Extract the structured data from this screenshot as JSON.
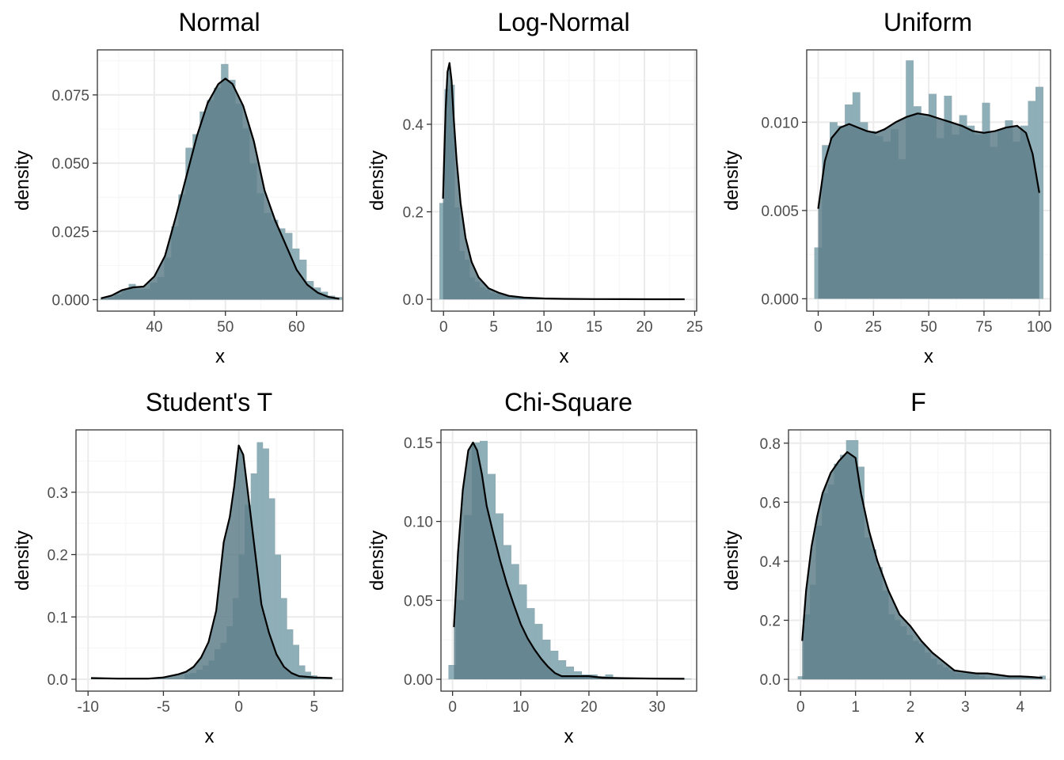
{
  "chart_data": [
    {
      "type": "bar",
      "title": "Normal",
      "xlabel": "x",
      "ylabel": "density",
      "xlim": [
        32,
        66.5
      ],
      "ylim": [
        -0.0042,
        0.0915
      ],
      "xticks": [
        40,
        50,
        60
      ],
      "xtick_labels": [
        "40",
        "50",
        "60"
      ],
      "yticks": [
        0,
        0.025,
        0.05,
        0.075
      ],
      "ytick_labels": [
        "0.000",
        "0.025",
        "0.050",
        "0.075"
      ],
      "grid": true,
      "bins": {
        "start": 32.4,
        "width": 1.0,
        "values": [
          0.0003,
          0.0008,
          0.0018,
          0.0034,
          0.0057,
          0.0038,
          0.0039,
          0.0062,
          0.0082,
          0.0154,
          0.0268,
          0.0385,
          0.0556,
          0.0606,
          0.0689,
          0.0731,
          0.0776,
          0.0863,
          0.0805,
          0.0717,
          0.0627,
          0.0498,
          0.0389,
          0.0317,
          0.0292,
          0.0261,
          0.0244,
          0.0187,
          0.0146,
          0.0068,
          0.0044,
          0.0029,
          0.0014,
          0.0009
        ]
      },
      "density": {
        "x": [
          32.5,
          34,
          35.5,
          37,
          38.5,
          40,
          41.5,
          43,
          44.5,
          46,
          47.5,
          49,
          50,
          51,
          52.5,
          54,
          55.5,
          57,
          58.5,
          60,
          61.5,
          63,
          64.5,
          66
        ],
        "y": [
          0.0005,
          0.0015,
          0.0035,
          0.0045,
          0.0048,
          0.0085,
          0.016,
          0.03,
          0.045,
          0.06,
          0.072,
          0.079,
          0.081,
          0.079,
          0.071,
          0.058,
          0.04,
          0.029,
          0.02,
          0.011,
          0.0055,
          0.0025,
          0.001,
          0.0003
        ]
      }
    },
    {
      "type": "bar",
      "title": "Log-Normal",
      "xlabel": "x",
      "ylabel": "density",
      "xlim": [
        -1.2,
        25.2
      ],
      "ylim": [
        -0.027,
        0.57
      ],
      "xticks": [
        0,
        5,
        10,
        15,
        20,
        25
      ],
      "xtick_labels": [
        "0",
        "5",
        "10",
        "15",
        "20",
        "25"
      ],
      "yticks": [
        0,
        0.2,
        0.4
      ],
      "ytick_labels": [
        "0.0",
        "0.2",
        "0.4"
      ],
      "grid": true,
      "bins": {
        "start": -0.4,
        "width": 0.5,
        "values": [
          0.22,
          0.48,
          0.49,
          0.21,
          0.11,
          0.09,
          0.05,
          0.04,
          0.027,
          0.022,
          0.015,
          0.012,
          0.01,
          0.007,
          0.006,
          0.005,
          0.004,
          0.004,
          0.003,
          0.003,
          0.002,
          0.002,
          0.002,
          0.001,
          0.001,
          0.001,
          0.001,
          0.0008,
          0.0006,
          0.0005,
          0.0004,
          0.0004,
          0.0003,
          0.0003,
          0.0002,
          0.0002,
          0.0002,
          0.0002,
          0.0001,
          0.0001,
          0.0001,
          0.0001,
          0.0001,
          0.0001,
          0.0001,
          0.0001,
          0.0001,
          0.0001,
          0.0001,
          0.0001
        ]
      },
      "density": {
        "x": [
          -0.05,
          0.2,
          0.4,
          0.6,
          0.8,
          1.0,
          1.3,
          1.7,
          2.2,
          2.8,
          3.5,
          4.5,
          5.5,
          6.5,
          8,
          10,
          12,
          15,
          18,
          21,
          24
        ],
        "y": [
          0.23,
          0.43,
          0.52,
          0.54,
          0.5,
          0.42,
          0.32,
          0.22,
          0.14,
          0.085,
          0.05,
          0.025,
          0.015,
          0.008,
          0.004,
          0.002,
          0.001,
          0.0005,
          0.0003,
          0.0002,
          0.0001
        ]
      }
    },
    {
      "type": "bar",
      "title": "Uniform",
      "xlabel": "x",
      "ylabel": "density",
      "xlim": [
        -5.2,
        105.1
      ],
      "ylim": [
        -0.0007,
        0.0141
      ],
      "xticks": [
        0,
        25,
        50,
        75,
        100
      ],
      "xtick_labels": [
        "0",
        "25",
        "50",
        "75",
        "100"
      ],
      "yticks": [
        0,
        0.005,
        0.01
      ],
      "ytick_labels": [
        "0.000",
        "0.005",
        "0.010"
      ],
      "grid": true,
      "bins": {
        "start": -1.7,
        "width": 3.45,
        "values": [
          0.0029,
          0.0087,
          0.01,
          0.0098,
          0.011,
          0.0117,
          0.01,
          0.0095,
          0.0092,
          0.0089,
          0.0096,
          0.0079,
          0.0135,
          0.0109,
          0.0103,
          0.0116,
          0.0091,
          0.0115,
          0.0093,
          0.0104,
          0.0098,
          0.0093,
          0.0111,
          0.0086,
          0.0096,
          0.0101,
          0.0089,
          0.0098,
          0.0112,
          0.012
        ]
      },
      "density": {
        "x": [
          0,
          3,
          6,
          10,
          14,
          18,
          22,
          26,
          30,
          35,
          40,
          45,
          50,
          55,
          60,
          65,
          70,
          75,
          80,
          85,
          90,
          94,
          97,
          100
        ],
        "y": [
          0.0051,
          0.0078,
          0.0091,
          0.0097,
          0.0099,
          0.0097,
          0.0095,
          0.0094,
          0.0096,
          0.01,
          0.0103,
          0.0105,
          0.0104,
          0.0102,
          0.01,
          0.0098,
          0.0095,
          0.0094,
          0.0095,
          0.0097,
          0.0098,
          0.0094,
          0.0082,
          0.006
        ]
      }
    },
    {
      "type": "bar",
      "title": "Student's T",
      "xlabel": "x",
      "ylabel": "density",
      "xlim": [
        -10.8,
        6.9
      ],
      "ylim": [
        -0.019,
        0.4
      ],
      "xticks": [
        -10,
        -5,
        0,
        5
      ],
      "xtick_labels": [
        "-10",
        "-5",
        "0",
        "5"
      ],
      "yticks": [
        0,
        0.1,
        0.2,
        0.3
      ],
      "ytick_labels": [
        "0.0",
        "0.1",
        "0.2",
        "0.3"
      ],
      "grid": true,
      "bins": {
        "start": -3.6,
        "width": 0.4,
        "values": [
          0.008,
          0.01,
          0.015,
          0.022,
          0.03,
          0.048,
          0.058,
          0.085,
          0.13,
          0.2,
          0.28,
          0.33,
          0.38,
          0.37,
          0.29,
          0.2,
          0.13,
          0.08,
          0.055,
          0.022,
          0.012,
          0.006
        ]
      },
      "density": {
        "x": [
          -9.8,
          -8,
          -6,
          -5,
          -4,
          -3.5,
          -3,
          -2.5,
          -2,
          -1.5,
          -1,
          -0.6,
          -0.3,
          0,
          0.3,
          0.6,
          1,
          1.5,
          2,
          2.5,
          3,
          3.5,
          4,
          5,
          6.2
        ],
        "y": [
          0.002,
          0.001,
          0.001,
          0.003,
          0.008,
          0.012,
          0.02,
          0.035,
          0.06,
          0.11,
          0.22,
          0.26,
          0.31,
          0.375,
          0.36,
          0.3,
          0.22,
          0.12,
          0.075,
          0.04,
          0.02,
          0.01,
          0.005,
          0.003,
          0.002
        ]
      }
    },
    {
      "type": "bar",
      "title": "Chi-Square",
      "xlabel": "x",
      "ylabel": "density",
      "xlim": [
        -1.7,
        35.8
      ],
      "ylim": [
        -0.0075,
        0.158
      ],
      "xticks": [
        0,
        10,
        20,
        30
      ],
      "xtick_labels": [
        "0",
        "10",
        "20",
        "30"
      ],
      "yticks": [
        0,
        0.05,
        0.1,
        0.15
      ],
      "ytick_labels": [
        "0.00",
        "0.05",
        "0.10",
        "0.15"
      ],
      "grid": true,
      "bins": {
        "start": -0.6,
        "width": 1.15,
        "values": [
          0.009,
          0.05,
          0.104,
          0.15,
          0.151,
          0.13,
          0.105,
          0.085,
          0.073,
          0.06,
          0.045,
          0.035,
          0.025,
          0.018,
          0.012,
          0.008,
          0.005,
          0.003,
          0.003,
          0.002,
          0.003,
          0.001,
          0.001,
          0.001,
          0.0005,
          0.0005,
          0.0005,
          0.0003,
          0.0003,
          0.0003,
          0.0003
        ]
      },
      "density": {
        "x": [
          0.2,
          0.8,
          1.5,
          2.3,
          3,
          3.6,
          4.3,
          5,
          6,
          7,
          8,
          9,
          10,
          11,
          12,
          13,
          14,
          15,
          16,
          18,
          20,
          22,
          25,
          30,
          34
        ],
        "y": [
          0.033,
          0.08,
          0.12,
          0.145,
          0.15,
          0.145,
          0.13,
          0.11,
          0.092,
          0.075,
          0.06,
          0.047,
          0.035,
          0.026,
          0.019,
          0.013,
          0.008,
          0.004,
          0.002,
          0.002,
          0.002,
          0.001,
          0.0007,
          0.0004,
          0.0003
        ]
      }
    },
    {
      "type": "bar",
      "title": "F",
      "xlabel": "x",
      "ylabel": "density",
      "xlim": [
        -0.22,
        4.55
      ],
      "ylim": [
        -0.04,
        0.845
      ],
      "xticks": [
        0,
        1,
        2,
        3,
        4
      ],
      "xtick_labels": [
        "0",
        "1",
        "2",
        "3",
        "4"
      ],
      "yticks": [
        0,
        0.2,
        0.4,
        0.6,
        0.8
      ],
      "ytick_labels": [
        "0.0",
        "0.2",
        "0.4",
        "0.6",
        "0.8"
      ],
      "grid": true,
      "bins": {
        "start": -0.05,
        "width": 0.11,
        "values": [
          0.01,
          0.22,
          0.32,
          0.52,
          0.63,
          0.66,
          0.73,
          0.76,
          0.81,
          0.81,
          0.72,
          0.48,
          0.44,
          0.38,
          0.3,
          0.22,
          0.2,
          0.18,
          0.15,
          0.13,
          0.12,
          0.09,
          0.07,
          0.05,
          0.04,
          0.03,
          0.02,
          0.02,
          0.02,
          0.015,
          0.01,
          0.005,
          0.005,
          0.005,
          0.005,
          0.004,
          0.004,
          0.003,
          0.003,
          0.002,
          0.012
        ]
      },
      "density": {
        "x": [
          0.03,
          0.1,
          0.2,
          0.3,
          0.4,
          0.55,
          0.7,
          0.85,
          1.0,
          1.1,
          1.25,
          1.4,
          1.6,
          1.8,
          2.0,
          2.2,
          2.4,
          2.6,
          2.8,
          3.0,
          3.2,
          3.4,
          3.6,
          3.8,
          4.0,
          4.2,
          4.4
        ],
        "y": [
          0.13,
          0.3,
          0.45,
          0.55,
          0.63,
          0.7,
          0.74,
          0.77,
          0.75,
          0.63,
          0.5,
          0.4,
          0.3,
          0.22,
          0.18,
          0.13,
          0.09,
          0.06,
          0.03,
          0.025,
          0.02,
          0.02,
          0.015,
          0.01,
          0.01,
          0.008,
          0.005
        ]
      }
    }
  ],
  "style": {
    "bar_fill": "#333333",
    "hist_overlay_fill": "#add8e6",
    "density_fill": "#5f7f89",
    "density_line": "#000000",
    "grid_major": "#ebebeb",
    "grid_minor": "#f5f5f5",
    "panel_border": "#333333"
  }
}
